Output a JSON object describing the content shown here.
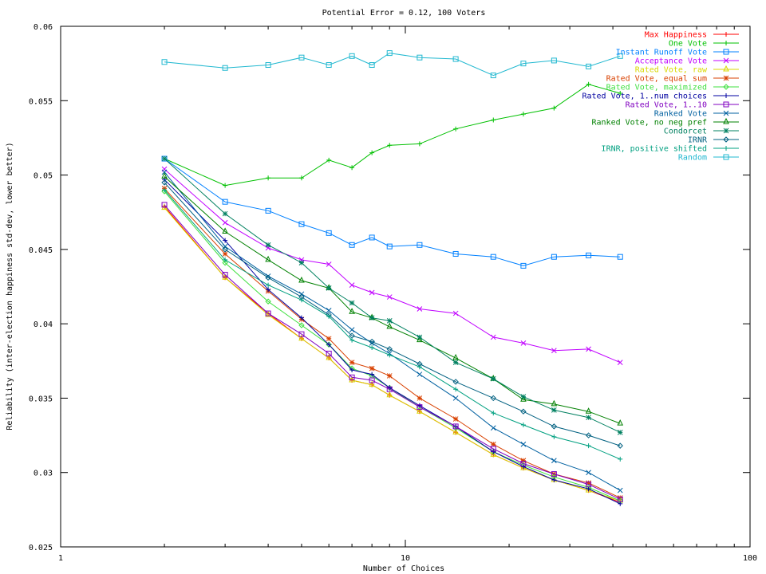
{
  "chart_data": {
    "type": "line",
    "title": "Potential Error = 0.12, 100 Voters",
    "xlabel": "Number of Choices",
    "ylabel": "Reliability (inter-election happiness std-dev, lower better)",
    "x_scale": "log",
    "xlim": [
      1,
      100
    ],
    "ylim": [
      0.025,
      0.06
    ],
    "x_ticks": [
      1,
      10,
      100
    ],
    "x_tick_labels": [
      "1",
      "10",
      "100"
    ],
    "y_ticks": [
      0.025,
      0.03,
      0.035,
      0.04,
      0.045,
      0.05,
      0.055,
      0.06
    ],
    "y_tick_labels": [
      "0.025",
      "0.03",
      "0.035",
      "0.04",
      "0.045",
      "0.05",
      "0.055",
      "0.06"
    ],
    "grid": false,
    "legend_position": "top-right",
    "x": [
      2,
      3,
      4,
      5,
      6,
      7,
      8,
      9,
      11,
      14,
      18,
      22,
      27,
      34,
      42
    ],
    "series": [
      {
        "name": "Max Happiness",
        "color": "#ff0000",
        "marker": "plus",
        "values": [
          0.0479,
          0.0431,
          0.0407,
          0.039,
          0.0377,
          0.0362,
          0.0359,
          0.0352,
          0.0341,
          0.0327,
          0.0312,
          0.0303,
          0.0295,
          0.0288,
          0.028
        ]
      },
      {
        "name": "One Vote",
        "color": "#00c000",
        "marker": "plus",
        "values": [
          0.0511,
          0.0493,
          0.0498,
          0.0498,
          0.051,
          0.0505,
          0.0515,
          0.052,
          0.0521,
          0.0531,
          0.0537,
          0.0541,
          0.0545,
          0.0561,
          0.0555
        ]
      },
      {
        "name": "Instant Runoff Vote",
        "color": "#0080ff",
        "marker": "square",
        "values": [
          0.0511,
          0.0482,
          0.0476,
          0.0467,
          0.0461,
          0.0453,
          0.0458,
          0.0452,
          0.0453,
          0.0447,
          0.0445,
          0.0439,
          0.0445,
          0.0446,
          0.0445
        ]
      },
      {
        "name": "Acceptance Vote",
        "color": "#c000ff",
        "marker": "x",
        "values": [
          0.0504,
          0.0468,
          0.0451,
          0.0443,
          0.044,
          0.0426,
          0.0421,
          0.0418,
          0.041,
          0.0407,
          0.0391,
          0.0387,
          0.0382,
          0.0383,
          0.0374
        ]
      },
      {
        "name": "Rated Vote, raw",
        "color": "#d8d800",
        "marker": "triangle",
        "values": [
          0.0478,
          0.0431,
          0.0406,
          0.039,
          0.0377,
          0.0362,
          0.0359,
          0.0352,
          0.0341,
          0.0327,
          0.0312,
          0.0303,
          0.0295,
          0.0288,
          0.0281
        ]
      },
      {
        "name": "Rated Vote, equal sum",
        "color": "#d84000",
        "marker": "star",
        "values": [
          0.0491,
          0.0447,
          0.0422,
          0.0403,
          0.039,
          0.0374,
          0.037,
          0.0365,
          0.035,
          0.0336,
          0.0319,
          0.0308,
          0.0299,
          0.0293,
          0.0283
        ]
      },
      {
        "name": "Rated Vote, maximized",
        "color": "#40e040",
        "marker": "diamond",
        "values": [
          0.0489,
          0.0441,
          0.0415,
          0.0399,
          0.0386,
          0.037,
          0.0365,
          0.0357,
          0.0344,
          0.033,
          0.0314,
          0.0305,
          0.0297,
          0.029,
          0.0281
        ]
      },
      {
        "name": "Rated Vote, 1..num choices",
        "color": "#0000a0",
        "marker": "plus",
        "values": [
          0.0497,
          0.0456,
          0.0423,
          0.0404,
          0.0386,
          0.0369,
          0.0366,
          0.0357,
          0.0345,
          0.0331,
          0.0314,
          0.0304,
          0.0295,
          0.0289,
          0.0279
        ]
      },
      {
        "name": "Rated Vote, 1..10",
        "color": "#8000c0",
        "marker": "square",
        "values": [
          0.048,
          0.0433,
          0.0407,
          0.0393,
          0.038,
          0.0364,
          0.0362,
          0.0356,
          0.0344,
          0.0331,
          0.0316,
          0.0306,
          0.0299,
          0.0292,
          0.0282
        ]
      },
      {
        "name": "Ranked Vote",
        "color": "#0060a0",
        "marker": "x",
        "values": [
          0.0502,
          0.0452,
          0.0432,
          0.042,
          0.0409,
          0.0396,
          0.0387,
          0.038,
          0.0366,
          0.035,
          0.033,
          0.0319,
          0.0308,
          0.03,
          0.0288
        ]
      },
      {
        "name": "Ranked Vote, no neg pref",
        "color": "#008000",
        "marker": "triangle",
        "values": [
          0.0499,
          0.0462,
          0.0443,
          0.0429,
          0.0424,
          0.0408,
          0.0404,
          0.0398,
          0.0389,
          0.0377,
          0.0363,
          0.0349,
          0.0346,
          0.0341,
          0.0333
        ]
      },
      {
        "name": "Condorcet",
        "color": "#008060",
        "marker": "star",
        "values": [
          0.0511,
          0.0474,
          0.0453,
          0.0441,
          0.0424,
          0.0414,
          0.0404,
          0.0402,
          0.0391,
          0.0374,
          0.0363,
          0.0351,
          0.0342,
          0.0337,
          0.0327
        ]
      },
      {
        "name": "IRNR",
        "color": "#006080",
        "marker": "diamond",
        "values": [
          0.0495,
          0.045,
          0.0431,
          0.0418,
          0.0406,
          0.0392,
          0.0388,
          0.0383,
          0.0373,
          0.0361,
          0.035,
          0.0341,
          0.0331,
          0.0325,
          0.0318
        ]
      },
      {
        "name": "IRNR, positive shifted",
        "color": "#00a080",
        "marker": "plus",
        "values": [
          0.049,
          0.0443,
          0.0426,
          0.0416,
          0.0405,
          0.0389,
          0.0384,
          0.0379,
          0.0371,
          0.0356,
          0.034,
          0.0332,
          0.0324,
          0.0318,
          0.0309
        ]
      },
      {
        "name": "Random",
        "color": "#20b8d0",
        "marker": "square",
        "values": [
          0.0576,
          0.0572,
          0.0574,
          0.0579,
          0.0574,
          0.058,
          0.0574,
          0.0582,
          0.0579,
          0.0578,
          0.0567,
          0.0575,
          0.0577,
          0.0573,
          0.058
        ]
      }
    ]
  }
}
